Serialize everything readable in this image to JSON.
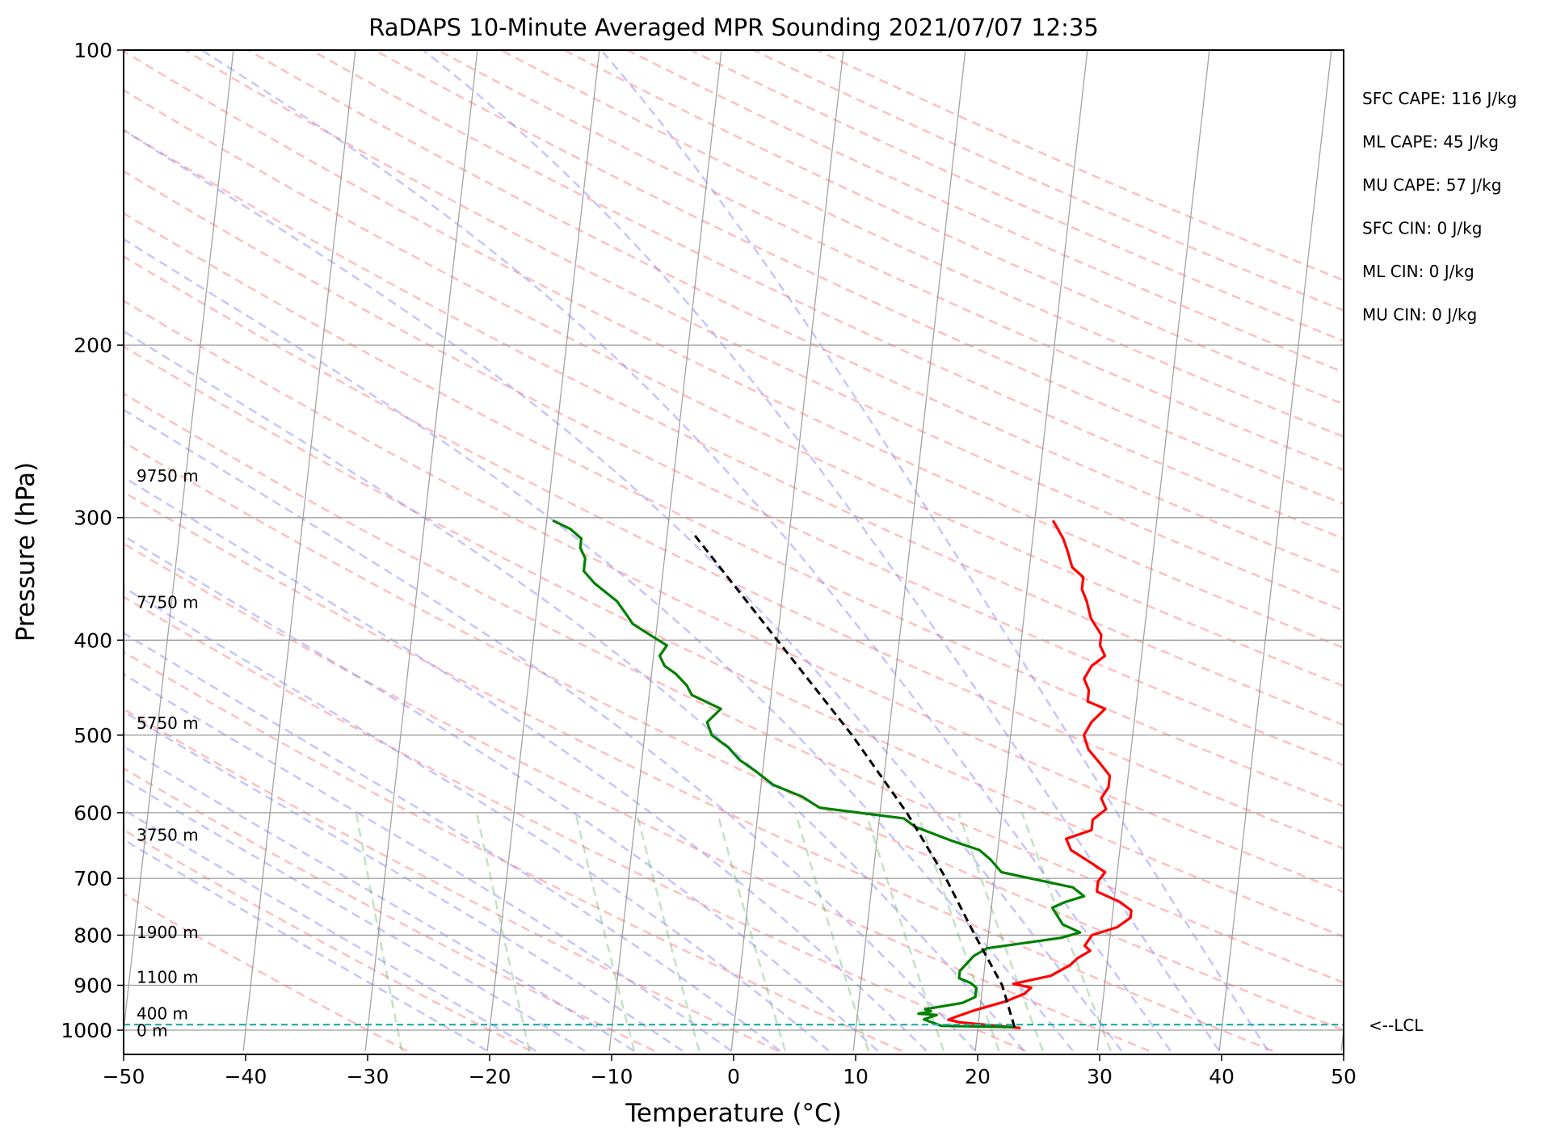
{
  "chart_data": {
    "type": "line",
    "title": "RaDAPS 10-Minute Averaged MPR Sounding 2021/07/07 12:35",
    "xlabel": "Temperature (°C)",
    "ylabel": "Pressure (hPa)",
    "xlim": [
      -50,
      50
    ],
    "ylim": [
      1050,
      100
    ],
    "y_scale": "log",
    "xticks": [
      -50,
      -40,
      -30,
      -20,
      -10,
      0,
      10,
      20,
      30,
      40,
      50
    ],
    "xtick_labels": [
      "−50",
      "−40",
      "−30",
      "−20",
      "−10",
      "0",
      "10",
      "20",
      "30",
      "40",
      "50"
    ],
    "yticks": [
      100,
      200,
      300,
      400,
      500,
      600,
      700,
      800,
      900,
      1000
    ],
    "ytick_labels": [
      "100",
      "200",
      "300",
      "400",
      "500",
      "600",
      "700",
      "800",
      "900",
      "1000"
    ],
    "grid": true,
    "skew": "skew-T log-P",
    "height_labels": [
      {
        "text": "9750 m",
        "p": 272
      },
      {
        "text": "7750 m",
        "p": 366
      },
      {
        "text": "5750 m",
        "p": 486
      },
      {
        "text": "3750 m",
        "p": 632
      },
      {
        "text": "1900 m",
        "p": 795
      },
      {
        "text": "1100 m",
        "p": 883
      },
      {
        "text": "400 m",
        "p": 962
      },
      {
        "text": "0 m",
        "p": 1001
      }
    ],
    "lcl": {
      "p": 987,
      "label": "<--LCL",
      "color": "#20b2aa"
    },
    "indices": [
      "SFC CAPE: 116 J/kg",
      "ML CAPE: 45 J/kg",
      "MU CAPE: 57 J/kg",
      "SFC CIN: 0 J/kg",
      "ML CIN: 0 J/kg",
      "MU CIN: 0 J/kg"
    ],
    "series": [
      {
        "color": "#ff0000",
        "points": [
          [
            23.5,
            995
          ],
          [
            18.5,
            982
          ],
          [
            17.5,
            976
          ],
          [
            18.0,
            970
          ],
          [
            19.5,
            955
          ],
          [
            22.0,
            935
          ],
          [
            23.5,
            918
          ],
          [
            24.0,
            905
          ],
          [
            22.5,
            897
          ],
          [
            25.5,
            880
          ],
          [
            27.0,
            858
          ],
          [
            27.5,
            845
          ],
          [
            28.5,
            830
          ],
          [
            28.0,
            820
          ],
          [
            28.5,
            800
          ],
          [
            30.5,
            785
          ],
          [
            31.5,
            768
          ],
          [
            31.5,
            755
          ],
          [
            30.5,
            740
          ],
          [
            28.5,
            722
          ],
          [
            28.5,
            705
          ],
          [
            29.0,
            690
          ],
          [
            27.5,
            672
          ],
          [
            26.0,
            655
          ],
          [
            25.5,
            638
          ],
          [
            27.5,
            625
          ],
          [
            27.5,
            610
          ],
          [
            28.5,
            595
          ],
          [
            28.0,
            580
          ],
          [
            28.5,
            565
          ],
          [
            28.5,
            550
          ],
          [
            27.5,
            533
          ],
          [
            26.5,
            517
          ],
          [
            26.0,
            500
          ],
          [
            26.5,
            485
          ],
          [
            27.5,
            470
          ],
          [
            26.0,
            462
          ],
          [
            26.0,
            450
          ],
          [
            25.5,
            438
          ],
          [
            26.0,
            425
          ],
          [
            27.0,
            415
          ],
          [
            26.5,
            405
          ],
          [
            26.5,
            395
          ],
          [
            25.5,
            380
          ],
          [
            25.0,
            365
          ],
          [
            24.5,
            355
          ],
          [
            24.5,
            345
          ],
          [
            23.5,
            337
          ],
          [
            23.0,
            325
          ],
          [
            22.5,
            315
          ],
          [
            21.5,
            302
          ]
        ]
      },
      {
        "color": "#008000",
        "points": [
          [
            23.0,
            993
          ],
          [
            17.0,
            990
          ],
          [
            16.5,
            985
          ],
          [
            15.5,
            975
          ],
          [
            16.5,
            965
          ],
          [
            15.0,
            962
          ],
          [
            16.0,
            957
          ],
          [
            15.5,
            952
          ],
          [
            17.0,
            945
          ],
          [
            18.5,
            938
          ],
          [
            19.5,
            925
          ],
          [
            19.5,
            905
          ],
          [
            19.0,
            895
          ],
          [
            18.0,
            885
          ],
          [
            18.0,
            870
          ],
          [
            18.5,
            855
          ],
          [
            19.0,
            840
          ],
          [
            20.0,
            825
          ],
          [
            26.0,
            805
          ],
          [
            27.5,
            795
          ],
          [
            26.0,
            780
          ],
          [
            25.5,
            765
          ],
          [
            25.0,
            750
          ],
          [
            26.0,
            740
          ],
          [
            27.5,
            730
          ],
          [
            26.5,
            715
          ],
          [
            20.5,
            690
          ],
          [
            19.5,
            670
          ],
          [
            18.5,
            655
          ],
          [
            16.0,
            640
          ],
          [
            13.0,
            620
          ],
          [
            12.0,
            608
          ],
          [
            5.0,
            593
          ],
          [
            3.5,
            578
          ],
          [
            1.0,
            562
          ],
          [
            -0.5,
            545
          ],
          [
            -2.0,
            530
          ],
          [
            -3.0,
            515
          ],
          [
            -4.5,
            500
          ],
          [
            -5.0,
            485
          ],
          [
            -4.0,
            470
          ],
          [
            -6.5,
            455
          ],
          [
            -7.0,
            445
          ],
          [
            -8.0,
            433
          ],
          [
            -9.0,
            425
          ],
          [
            -9.5,
            415
          ],
          [
            -9.0,
            405
          ],
          [
            -10.5,
            395
          ],
          [
            -12.0,
            385
          ],
          [
            -12.5,
            378
          ],
          [
            -13.5,
            365
          ],
          [
            -15.5,
            350
          ],
          [
            -16.5,
            340
          ],
          [
            -16.5,
            330
          ],
          [
            -17.0,
            322
          ],
          [
            -17.0,
            315
          ],
          [
            -18.0,
            308
          ],
          [
            -19.5,
            302
          ]
        ]
      },
      {
        "color": "#000000",
        "dashed": true,
        "points": [
          [
            23.0,
            993
          ],
          [
            21.6,
            900
          ],
          [
            18.9,
            800
          ],
          [
            16.0,
            700
          ],
          [
            12.2,
            600
          ],
          [
            7.0,
            500
          ],
          [
            0.0,
            400
          ],
          [
            -8.0,
            310
          ]
        ]
      }
    ]
  }
}
